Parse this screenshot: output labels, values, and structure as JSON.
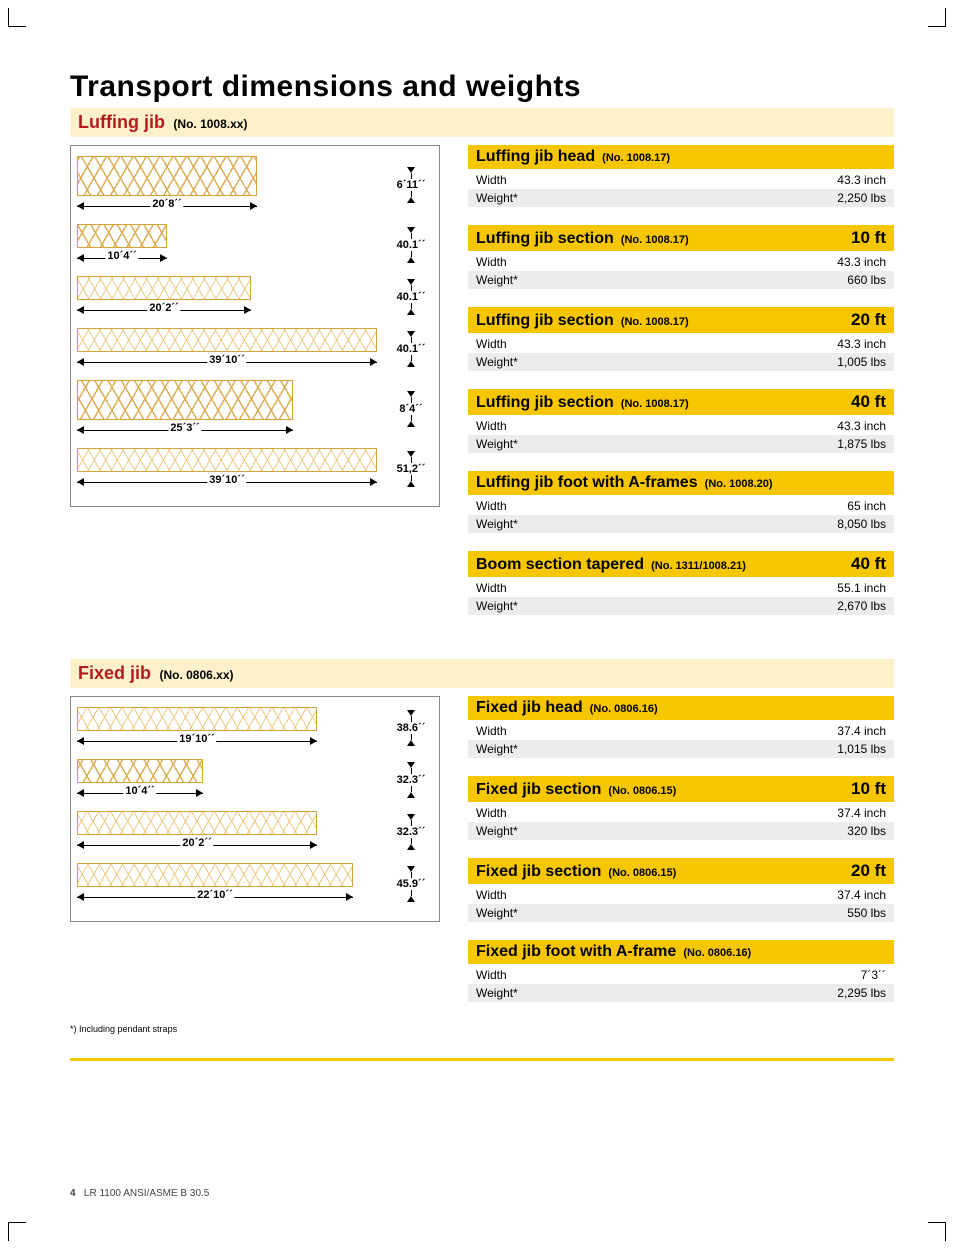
{
  "page": {
    "title": "Transport dimensions and weights",
    "footnote": "*) Including pendant straps",
    "footer_num": "4",
    "footer_text": "LR 1100 ANSI/ASME B 30.5"
  },
  "colors": {
    "accent_yellow": "#f6c600",
    "band_cream": "#fdf1cc",
    "title_red": "#b11d1d",
    "truss_orange": "#d7a23a"
  },
  "section1": {
    "title": "Luffing jib",
    "sub": "(No. 1008.xx)",
    "diagrams": [
      {
        "len": "20´8´´",
        "h": "6´11´´",
        "wfrac": 0.6,
        "tall": true,
        "light": false
      },
      {
        "len": "10´4´´",
        "h": "40.1´´",
        "wfrac": 0.3,
        "tall": false,
        "light": false
      },
      {
        "len": "20´2´´",
        "h": "40.1´´",
        "wfrac": 0.58,
        "tall": false,
        "light": true
      },
      {
        "len": "39´10´´",
        "h": "40.1´´",
        "wfrac": 1.0,
        "tall": false,
        "light": true
      },
      {
        "len": "25´3´´",
        "h": "8´4´´",
        "wfrac": 0.72,
        "tall": true,
        "light": false
      },
      {
        "len": "39´10´´",
        "h": "51,2´´",
        "wfrac": 1.0,
        "tall": false,
        "light": true
      }
    ],
    "specs": [
      {
        "title": "Luffing jib head",
        "sub": "(No. 1008.17)",
        "right": "",
        "rows": [
          [
            "Width",
            "43.3 inch"
          ],
          [
            "Weight*",
            "2,250 lbs"
          ]
        ]
      },
      {
        "title": "Luffing jib section",
        "sub": "(No. 1008.17)",
        "right": "10 ft",
        "rows": [
          [
            "Width",
            "43.3 inch"
          ],
          [
            "Weight*",
            "660 lbs"
          ]
        ]
      },
      {
        "title": "Luffing jib section",
        "sub": "(No. 1008.17)",
        "right": "20 ft",
        "rows": [
          [
            "Width",
            "43.3 inch"
          ],
          [
            "Weight*",
            "1,005 lbs"
          ]
        ]
      },
      {
        "title": "Luffing jib section",
        "sub": "(No. 1008.17)",
        "right": "40 ft",
        "rows": [
          [
            "Width",
            "43.3 inch"
          ],
          [
            "Weight*",
            "1,875 lbs"
          ]
        ]
      },
      {
        "title": "Luffing jib foot with A-frames",
        "sub": "(No. 1008.20)",
        "right": "",
        "rows": [
          [
            "Width",
            "65 inch"
          ],
          [
            "Weight*",
            "8,050 lbs"
          ]
        ]
      },
      {
        "title": "Boom section tapered",
        "sub": "(No. 1311/1008.21)",
        "right": "40 ft",
        "rows": [
          [
            "Width",
            "55.1 inch"
          ],
          [
            "Weight*",
            "2,670 lbs"
          ]
        ]
      }
    ]
  },
  "section2": {
    "title": "Fixed jib",
    "sub": "(No. 0806.xx)",
    "diagrams": [
      {
        "len": "19´10´´",
        "h": "38.6´´",
        "wfrac": 0.8,
        "tall": false,
        "light": true
      },
      {
        "len": "10´4´´",
        "h": "32.3´´",
        "wfrac": 0.42,
        "tall": false,
        "light": false
      },
      {
        "len": "20´2´´",
        "h": "32.3´´",
        "wfrac": 0.8,
        "tall": false,
        "light": true
      },
      {
        "len": "22´10´´",
        "h": "45.9´´",
        "wfrac": 0.92,
        "tall": false,
        "light": true
      }
    ],
    "specs": [
      {
        "title": "Fixed jib head",
        "sub": "(No. 0806.16)",
        "right": "",
        "rows": [
          [
            "Width",
            "37.4 inch"
          ],
          [
            "Weight*",
            "1,015 lbs"
          ]
        ]
      },
      {
        "title": "Fixed jib section",
        "sub": "(No. 0806.15)",
        "right": "10 ft",
        "rows": [
          [
            "Width",
            "37.4 inch"
          ],
          [
            "Weight*",
            "320 lbs"
          ]
        ]
      },
      {
        "title": "Fixed jib section",
        "sub": "(No. 0806.15)",
        "right": "20 ft",
        "rows": [
          [
            "Width",
            "37.4 inch"
          ],
          [
            "Weight*",
            "550 lbs"
          ]
        ]
      },
      {
        "title": "Fixed jib foot with A-frame",
        "sub": "(No. 0806.16)",
        "right": "",
        "rows": [
          [
            "Width",
            "7´3´´"
          ],
          [
            "Weight*",
            "2,295 lbs"
          ]
        ]
      }
    ]
  }
}
